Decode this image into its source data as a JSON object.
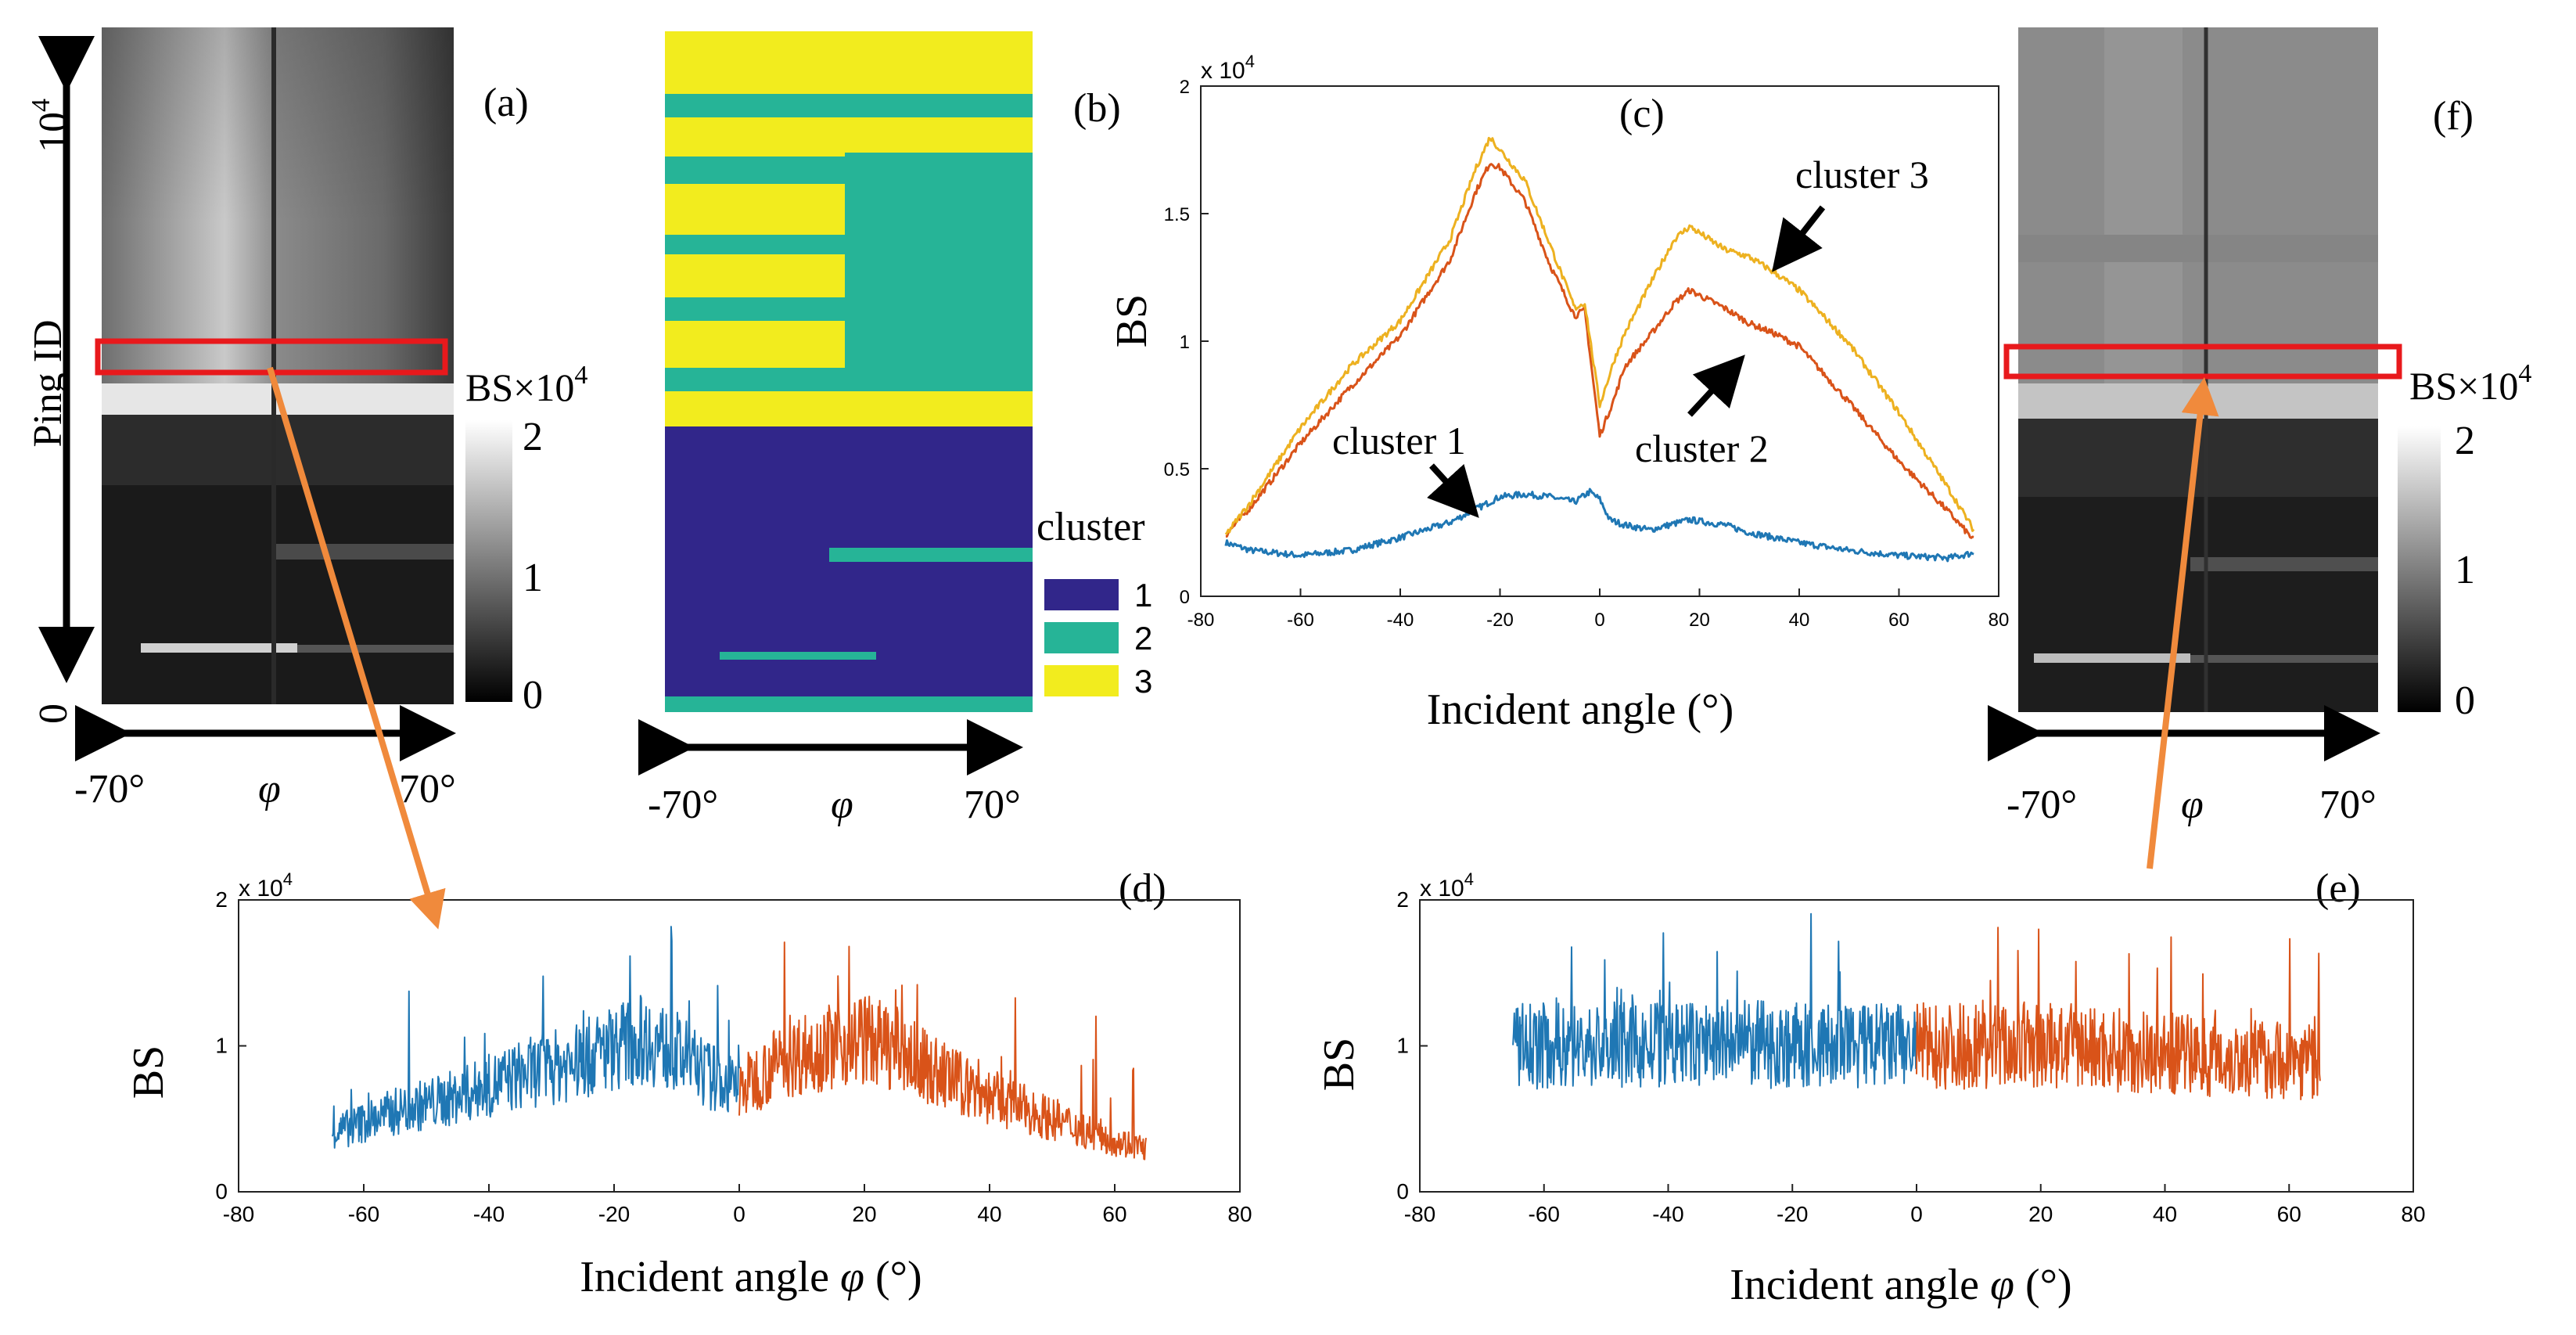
{
  "panels": {
    "a": {
      "label": "(a)",
      "ylabel": "Ping ID",
      "ytop": "10",
      "ytop_exp": "4",
      "ybottom": "0",
      "xleft": "-70°",
      "xmid": "φ",
      "xright": "70°",
      "colorbar": {
        "title": "BS×10",
        "title_exp": "4",
        "ticks": [
          "2",
          "1",
          "0"
        ]
      }
    },
    "b": {
      "label": "(b)",
      "xleft": "-70°",
      "xmid": "φ",
      "xright": "70°",
      "legend": {
        "title": "cluster",
        "items": [
          {
            "label": "1",
            "color": "#31268a"
          },
          {
            "label": "2",
            "color": "#26b497"
          },
          {
            "label": "3",
            "color": "#f2ec1e"
          }
        ]
      }
    },
    "c": {
      "label": "(c)",
      "ylabel": "BS",
      "xlabel": "Incident angle (°)",
      "scale": "x 10",
      "scale_exp": "4",
      "annotations": [
        "cluster 1",
        "cluster 2",
        "cluster 3"
      ]
    },
    "d": {
      "label": "(d)",
      "ylabel": "BS",
      "xlabel": "Incident angle",
      "xlabel_sym": "φ",
      "xlabel_unit": "(°)",
      "scale": "x 10",
      "scale_exp": "4"
    },
    "e": {
      "label": "(e)",
      "ylabel": "BS",
      "xlabel": "Incident angle",
      "xlabel_sym": "φ",
      "xlabel_unit": "(°)",
      "scale": "x 10",
      "scale_exp": "4"
    },
    "f": {
      "label": "(f)",
      "xleft": "-70°",
      "xmid": "φ",
      "xright": "70°",
      "colorbar": {
        "title": "BS×10",
        "title_exp": "4",
        "ticks": [
          "2",
          "1",
          "0"
        ]
      }
    }
  },
  "colors": {
    "blue": "#1f77b4",
    "orange": "#d95319",
    "yellow": "#edb120",
    "highlight": "#e8191c",
    "arrow": "#f08a3c"
  },
  "chart_data": [
    {
      "panel": "c",
      "type": "line",
      "title": "",
      "xlabel": "Incident angle (°)",
      "ylabel": "BS",
      "xlim": [
        -80,
        80
      ],
      "ylim": [
        0,
        20000
      ],
      "xticks": [
        -80,
        -60,
        -40,
        -20,
        0,
        20,
        40,
        60,
        80
      ],
      "yticks": [
        0,
        5000,
        10000,
        15000,
        20000
      ],
      "ytick_labels": [
        "0",
        "0.5",
        "1",
        "1.5",
        "2"
      ],
      "series": [
        {
          "name": "cluster 1",
          "color": "#1f77b4",
          "x": [
            -75,
            -70,
            -60,
            -50,
            -40,
            -30,
            -25,
            -20,
            -15,
            -10,
            -5,
            -2,
            0,
            2,
            5,
            10,
            18,
            25,
            30,
            40,
            50,
            60,
            70,
            75
          ],
          "y": [
            2100,
            1800,
            1600,
            1800,
            2300,
            2900,
            3400,
            3900,
            4000,
            3900,
            3700,
            4100,
            3800,
            3000,
            2800,
            2600,
            3000,
            2800,
            2500,
            2100,
            1800,
            1600,
            1500,
            1700
          ]
        },
        {
          "name": "cluster 2",
          "color": "#d95319",
          "x": [
            -75,
            -70,
            -60,
            -50,
            -40,
            -30,
            -25,
            -22,
            -20,
            -15,
            -10,
            -5,
            -3,
            0,
            3,
            5,
            10,
            15,
            18,
            25,
            30,
            35,
            40,
            50,
            60,
            70,
            75
          ],
          "y": [
            2400,
            3500,
            6000,
            8200,
            10200,
            13200,
            15800,
            17000,
            16800,
            15500,
            13000,
            11000,
            11200,
            6300,
            7800,
            9000,
            10200,
            11500,
            12000,
            11300,
            10700,
            10300,
            9800,
            7600,
            5300,
            3300,
            2200
          ]
        },
        {
          "name": "cluster 3",
          "color": "#edb120",
          "x": [
            -75,
            -70,
            -60,
            -50,
            -40,
            -30,
            -25,
            -22,
            -20,
            -15,
            -10,
            -5,
            -3,
            0,
            3,
            5,
            10,
            15,
            18,
            25,
            30,
            35,
            40,
            50,
            60,
            70,
            75
          ],
          "y": [
            2400,
            3700,
            6600,
            9000,
            10800,
            14000,
            16700,
            18000,
            17500,
            16300,
            13800,
            11300,
            11500,
            7500,
            9300,
            10300,
            12200,
            14000,
            14500,
            13600,
            13300,
            12700,
            12000,
            9900,
            7200,
            4200,
            2600
          ]
        }
      ]
    },
    {
      "panel": "d",
      "type": "line",
      "title": "",
      "xlabel": "Incident angle φ (°)",
      "ylabel": "BS",
      "xlim": [
        -80,
        80
      ],
      "ylim": [
        0,
        20000
      ],
      "xticks": [
        -80,
        -60,
        -40,
        -20,
        0,
        20,
        40,
        60,
        80
      ],
      "yticks": [
        0,
        10000,
        20000
      ],
      "ytick_labels": [
        "0",
        "1",
        "2"
      ],
      "series": [
        {
          "color": "#1f77b4",
          "x": [
            -65,
            -55,
            -45,
            -35,
            -25,
            -20,
            -15,
            -10,
            -5,
            0
          ],
          "y": [
            4000,
            5500,
            6500,
            8000,
            9000,
            10000,
            10500,
            9500,
            8000,
            7000
          ]
        },
        {
          "color": "#d95319",
          "x": [
            0,
            5,
            10,
            15,
            20,
            25,
            30,
            40,
            50,
            60,
            65
          ],
          "y": [
            7000,
            8500,
            9500,
            10000,
            10500,
            9800,
            8500,
            6500,
            5000,
            3500,
            3000
          ]
        }
      ]
    },
    {
      "panel": "e",
      "type": "line",
      "title": "",
      "xlabel": "Incident angle φ (°)",
      "ylabel": "BS",
      "xlim": [
        -80,
        80
      ],
      "ylim": [
        0,
        20000
      ],
      "xticks": [
        -80,
        -60,
        -40,
        -20,
        0,
        20,
        40,
        60,
        80
      ],
      "yticks": [
        0,
        10000,
        20000
      ],
      "ytick_labels": [
        "0",
        "1",
        "2"
      ],
      "series": [
        {
          "color": "#1f77b4",
          "x": [
            -65,
            -50,
            -40,
            -30,
            -20,
            -10,
            0
          ],
          "y": [
            10000,
            10000,
            10000,
            10200,
            10000,
            10000,
            10000
          ]
        },
        {
          "color": "#d95319",
          "x": [
            0,
            10,
            20,
            30,
            40,
            50,
            65
          ],
          "y": [
            10000,
            10000,
            10000,
            9800,
            9500,
            9200,
            9000
          ]
        }
      ]
    }
  ]
}
